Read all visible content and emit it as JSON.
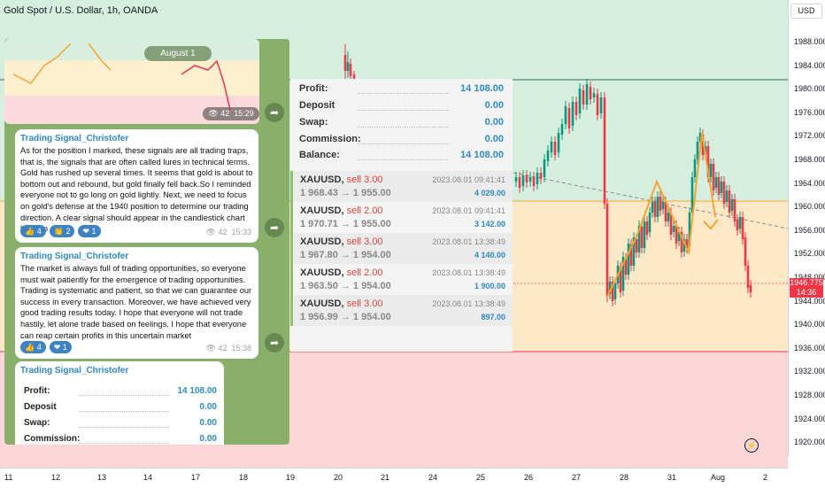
{
  "chart": {
    "title": "Gold Spot / U.S. Dollar, 1h, OANDA",
    "currency_button": "USD",
    "y_ticks": [
      "1988.000",
      "1984.000",
      "1980.000",
      "1976.000",
      "1972.000",
      "1968.000",
      "1964.000",
      "1960.000",
      "1956.000",
      "1952.000",
      "1948.000",
      "1944.000",
      "1940.000",
      "1936.000",
      "1932.000",
      "1928.000",
      "1924.000",
      "1920.000"
    ],
    "x_ticks": [
      "11",
      "12",
      "13",
      "14",
      "17",
      "18",
      "19",
      "20",
      "21",
      "24",
      "25",
      "26",
      "27",
      "28",
      "31",
      "Aug",
      "2"
    ],
    "current_price": "1946.775",
    "countdown": "14:36",
    "colors": {
      "zone_green": "#d5eedd",
      "zone_orange": "#fde8c8",
      "zone_red": "#fbd6d9",
      "candle_up": "#089981",
      "candle_down": "#f23645",
      "pattern": "#f7a531",
      "price_tag": "#f23645"
    }
  },
  "telegram": {
    "image_date_badge": "August 1",
    "image_views": "42",
    "image_time": "15:29",
    "messages": [
      {
        "author": "Trading Signal_Christofer",
        "text": "As for the position I marked, these signals are all trading traps, that is, the signals that are often called lures in technical terms. Gold has rushed up several times. It seems that gold is about to bottom out and rebound, but gold finally fell back.So I reminded everyone not to go long on gold lightly. Next, we need to focus on gold's defense at the 1940 position to determine our trading direction. A clear signal should appear in the candlestick chart later on",
        "reactions": [
          {
            "emoji": "👍",
            "count": "4"
          },
          {
            "emoji": "👏",
            "count": "2"
          },
          {
            "emoji": "❤",
            "count": "1"
          }
        ],
        "views": "42",
        "time": "15:33"
      },
      {
        "author": "Trading Signal_Christofer",
        "text": "The market is always full of trading opportunities, so everyone must wait patiently for the emergence of trading opportunities. Trading is systematic and patient, so that we can guarantee our success in every transaction. Moreover, we have achieved very good trading results today. I hope that everyone will not trade hastily, let alone trade based on feelings. I hope that everyone can reap certain profits in this uncertain market",
        "reactions": [
          {
            "emoji": "👍",
            "count": "4"
          },
          {
            "emoji": "❤",
            "count": "1"
          }
        ],
        "views": "42",
        "time": "15:38"
      }
    ],
    "last_message": {
      "author": "Trading Signal_Christofer",
      "rows": [
        {
          "label": "Profit:",
          "value": "14 108.00"
        },
        {
          "label": "Deposit",
          "value": "0.00"
        },
        {
          "label": "Swap:",
          "value": "0.00"
        },
        {
          "label": "Commission:",
          "value": "0.00"
        }
      ]
    }
  },
  "results": {
    "summary": [
      {
        "label": "Profit:",
        "value": "14 108.00"
      },
      {
        "label": "Deposit",
        "value": "0.00"
      },
      {
        "label": "Swap:",
        "value": "0.00"
      },
      {
        "label": "Commission:",
        "value": "0.00"
      },
      {
        "label": "Balance:",
        "value": "14 108.00"
      }
    ],
    "trades": [
      {
        "symbol": "XAUUSD,",
        "action": "sell 3.00",
        "date": "2023.08.01 09:41:41",
        "prices": "1 968.43 → 1 955.00",
        "profit": "4 029.00"
      },
      {
        "symbol": "XAUUSD,",
        "action": "sell 2.00",
        "date": "2023.08.01 09:41:41",
        "prices": "1 970.71 → 1 955.00",
        "profit": "3 142.00"
      },
      {
        "symbol": "XAUUSD,",
        "action": "sell 3.00",
        "date": "2023.08.01 13:38:49",
        "prices": "1 967.80 → 1 954.00",
        "profit": "4 140.00"
      },
      {
        "symbol": "XAUUSD,",
        "action": "sell 2.00",
        "date": "2023.08.01 13:38:49",
        "prices": "1 963.50 → 1 954.00",
        "profit": "1 900.00"
      },
      {
        "symbol": "XAUUSD,",
        "action": "sell 3.00",
        "date": "2023.08.01 13:38:49",
        "prices": "1 956.99 → 1 954.00",
        "profit": "897.00"
      }
    ]
  }
}
